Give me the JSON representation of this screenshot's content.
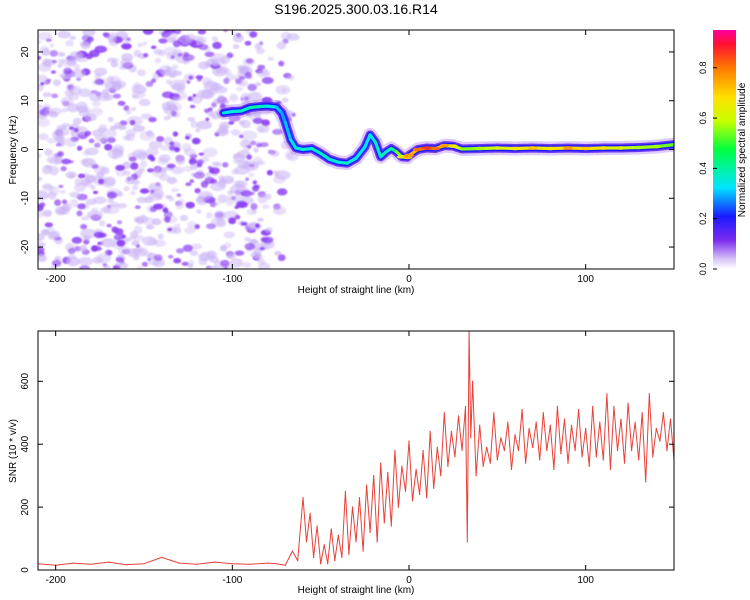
{
  "title": "S196.2025.300.03.16.R14",
  "colors": {
    "snr_line": "#e8413a",
    "ridge_low": "#7b2cf0",
    "ridge_mid": "#1ff0d8",
    "ridge_high": "#e5213a",
    "scatter": "#8a3cf5",
    "axis": "#000000"
  },
  "chart_data": [
    {
      "type": "heatmap",
      "name": "spectrogram",
      "xlabel": "Height of straight line (km)",
      "ylabel": "Frequency (Hz)",
      "xlim": [
        -210,
        150
      ],
      "ylim": [
        -24.5,
        24.5
      ],
      "xticks": [
        -200,
        -100,
        0,
        100
      ],
      "xtick_labels": [
        "-200",
        "-100",
        "0",
        "100"
      ],
      "yticks": [
        -20,
        -10,
        0,
        10,
        20
      ],
      "ytick_labels": [
        "-20",
        "-10",
        "0",
        "10",
        "20"
      ],
      "noise_region": {
        "x_from": -210,
        "x_to": -75,
        "amplitude_range": [
          0.05,
          0.15
        ]
      },
      "ridge": {
        "x": [
          -105,
          -100,
          -95,
          -90,
          -85,
          -80,
          -75,
          -72,
          -70,
          -67,
          -64,
          -60,
          -55,
          -50,
          -45,
          -40,
          -35,
          -30,
          -25,
          -22,
          -19,
          -16,
          -13,
          -10,
          -7,
          -4,
          -1,
          0,
          5,
          10,
          15,
          20,
          25,
          30,
          40,
          50,
          60,
          70,
          80,
          90,
          100,
          110,
          120,
          130,
          140,
          150
        ],
        "y": [
          7.5,
          7.8,
          7.9,
          8.6,
          8.8,
          8.9,
          8.7,
          7.5,
          5.5,
          2.0,
          0.3,
          0.0,
          0.2,
          -0.8,
          -2.0,
          -2.6,
          -2.8,
          -1.8,
          0.5,
          3.0,
          1.5,
          -1.5,
          -0.5,
          0.2,
          -0.5,
          -1.5,
          -1.6,
          -1.2,
          0.0,
          0.3,
          0.2,
          0.8,
          0.7,
          0.1,
          0.2,
          0.3,
          0.2,
          0.3,
          0.2,
          0.3,
          0.2,
          0.3,
          0.3,
          0.4,
          0.6,
          1.0
        ],
        "amplitude": [
          0.25,
          0.3,
          0.3,
          0.35,
          0.35,
          0.3,
          0.25,
          0.2,
          0.2,
          0.25,
          0.3,
          0.3,
          0.3,
          0.35,
          0.3,
          0.3,
          0.3,
          0.3,
          0.25,
          0.3,
          0.3,
          0.35,
          0.3,
          0.3,
          0.5,
          0.65,
          0.75,
          0.8,
          0.85,
          0.9,
          0.85,
          0.8,
          0.7,
          0.55,
          0.6,
          0.65,
          0.7,
          0.75,
          0.7,
          0.8,
          0.75,
          0.7,
          0.65,
          0.6,
          0.6,
          0.5
        ]
      },
      "colorbar": {
        "label": "Normalized spectral amplitude",
        "range": [
          0,
          0.95
        ],
        "ticks": [
          0.0,
          0.2,
          0.4,
          0.6,
          0.8
        ],
        "tick_labels": [
          "0.0",
          "0.2",
          "0.4",
          "0.6",
          "0.8"
        ]
      }
    },
    {
      "type": "line",
      "name": "snr",
      "xlabel": "Height of straight line (km)",
      "ylabel": "SNR (10 * v/v)",
      "xlim": [
        -210,
        150
      ],
      "ylim": [
        0,
        760
      ],
      "xticks": [
        -200,
        -100,
        0,
        100
      ],
      "xtick_labels": [
        "-200",
        "-100",
        "0",
        "100"
      ],
      "yticks": [
        0,
        200,
        400,
        600
      ],
      "ytick_labels": [
        "0",
        "200",
        "400",
        "600"
      ],
      "series": [
        {
          "name": "SNR",
          "x": [
            -210,
            -200,
            -190,
            -180,
            -170,
            -160,
            -150,
            -140,
            -130,
            -120,
            -110,
            -100,
            -90,
            -80,
            -75,
            -70,
            -66,
            -63,
            -60,
            -58,
            -56,
            -54,
            -52,
            -50,
            -48,
            -46,
            -44,
            -42,
            -40,
            -38,
            -36,
            -34,
            -32,
            -30,
            -28,
            -26,
            -24,
            -22,
            -20,
            -18,
            -16,
            -14,
            -12,
            -10,
            -8,
            -6,
            -4,
            -2,
            0,
            2,
            4,
            6,
            8,
            10,
            12,
            14,
            16,
            18,
            20,
            22,
            24,
            26,
            28,
            30,
            32,
            33,
            34,
            35,
            36,
            38,
            40,
            42,
            44,
            46,
            48,
            50,
            52,
            54,
            56,
            58,
            60,
            62,
            64,
            66,
            68,
            70,
            72,
            74,
            76,
            78,
            80,
            82,
            84,
            86,
            88,
            90,
            92,
            94,
            96,
            98,
            100,
            102,
            104,
            106,
            108,
            110,
            112,
            114,
            116,
            118,
            120,
            122,
            124,
            126,
            128,
            130,
            132,
            134,
            136,
            138,
            140,
            142,
            144,
            146,
            148,
            150
          ],
          "values": [
            20,
            15,
            22,
            18,
            25,
            17,
            20,
            40,
            22,
            18,
            25,
            20,
            18,
            22,
            20,
            15,
            60,
            30,
            230,
            90,
            180,
            40,
            140,
            20,
            80,
            20,
            130,
            30,
            110,
            40,
            250,
            50,
            200,
            90,
            230,
            60,
            270,
            120,
            300,
            90,
            340,
            150,
            310,
            140,
            380,
            200,
            330,
            250,
            410,
            220,
            320,
            240,
            380,
            230,
            440,
            260,
            390,
            300,
            500,
            330,
            440,
            360,
            490,
            380,
            520,
            90,
            760,
            420,
            600,
            300,
            460,
            330,
            390,
            340,
            500,
            350,
            420,
            380,
            470,
            320,
            430,
            380,
            510,
            340,
            450,
            390,
            470,
            350,
            500,
            380,
            460,
            320,
            520,
            370,
            480,
            340,
            460,
            380,
            510,
            360,
            450,
            330,
            520,
            360,
            470,
            350,
            560,
            320,
            520,
            380,
            480,
            340,
            530,
            380,
            470,
            350,
            500,
            280,
            560,
            360,
            450,
            410,
            500,
            380,
            480,
            350
          ]
        }
      ]
    }
  ]
}
